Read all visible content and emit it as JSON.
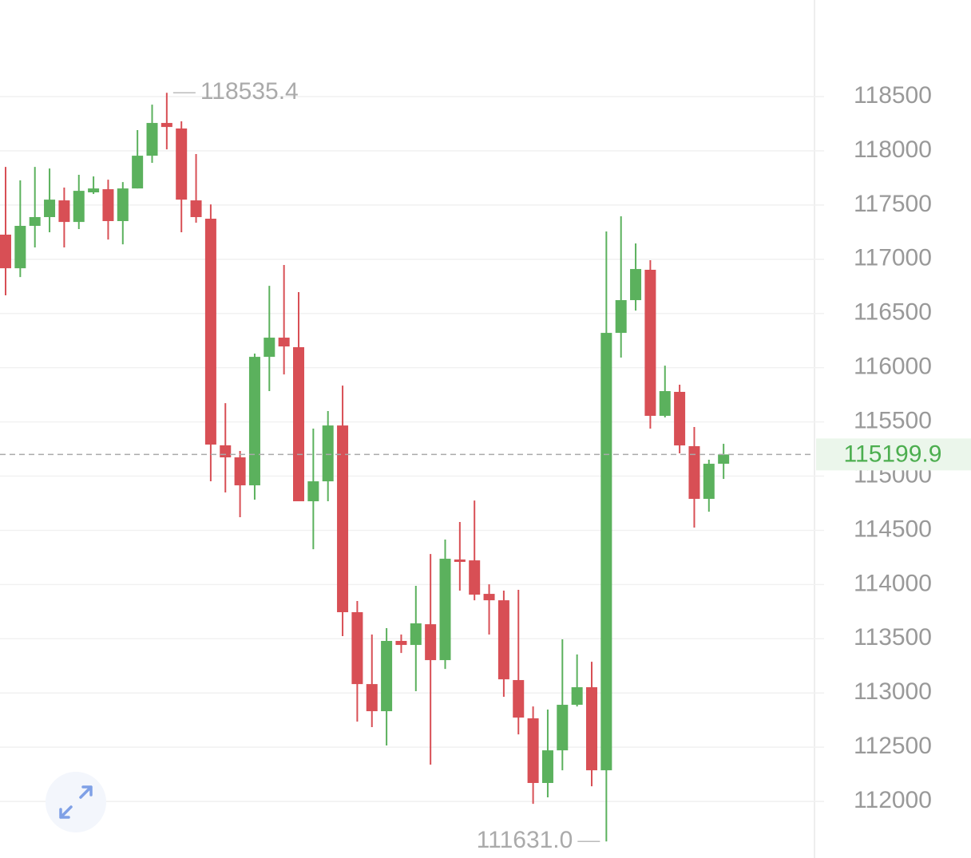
{
  "chart_data": {
    "type": "candlestick",
    "ylim": [
      111478,
      119391
    ],
    "yticks": [
      112000,
      112500,
      113000,
      113500,
      114000,
      114500,
      115000,
      115500,
      116000,
      116500,
      117000,
      117500,
      118000,
      118500
    ],
    "grid": true,
    "up_color": "#5bb15d",
    "down_color": "#d84f55",
    "open": [
      117227,
      116917,
      117308,
      117389,
      117543,
      117344,
      117617,
      117646,
      117352,
      117653,
      117955,
      118257,
      118206,
      117543,
      117374,
      115284,
      115173,
      114915,
      116100,
      116277,
      116189,
      114768,
      114952,
      115467,
      113745,
      113082,
      112832,
      113480,
      113443,
      113634,
      113303,
      114231,
      114223,
      113914,
      113855,
      113119,
      112766,
      112170,
      112471,
      112891,
      113053,
      112287,
      116321,
      116623,
      116903,
      115556,
      115777,
      115276,
      114790,
      115114
    ],
    "high": [
      117852,
      117727,
      117852,
      117837,
      117661,
      117779,
      117764,
      117734,
      117712,
      118191,
      118426,
      118535.4,
      118272,
      117970,
      117506,
      115673,
      115232,
      116130,
      116755,
      116947,
      116697,
      115438,
      115600,
      115835,
      113848,
      113539,
      113598,
      113539,
      113988,
      114282,
      114415,
      114577,
      114775,
      114002,
      113944,
      113951,
      112876,
      112847,
      113495,
      113355,
      113288,
      117256,
      117396,
      117146,
      116991,
      116019,
      115843,
      115453,
      115151,
      115298
    ],
    "low": [
      116667,
      116836,
      117109,
      117249,
      117109,
      117278,
      117602,
      117182,
      117138,
      117653,
      117889,
      118014,
      117249,
      117337,
      114952,
      114849,
      114621,
      114783,
      115784,
      115938,
      114768,
      114326,
      114768,
      113524,
      112736,
      112685,
      112516,
      113369,
      113016,
      112339,
      113222,
      113944,
      113855,
      113539,
      112965,
      112618,
      111978,
      112037,
      112287,
      112876,
      112140,
      111631.0,
      116093,
      116527,
      115438,
      115541,
      115210,
      114525,
      114672,
      114974
    ],
    "close": [
      116917,
      117308,
      117389,
      117550,
      117344,
      117631,
      117653,
      117352,
      117653,
      117955,
      118257,
      118220,
      117550,
      117389,
      115291,
      115173,
      114915,
      116100,
      116277,
      116196,
      114768,
      114952,
      115467,
      113745,
      113082,
      112832,
      113480,
      113443,
      113642,
      113303,
      114238,
      114216,
      113907,
      113855,
      113126,
      112773,
      112170,
      112471,
      112891,
      113053,
      112287,
      116321,
      116623,
      116910,
      115556,
      115784,
      115283,
      114790,
      115114,
      115199.9
    ],
    "annotations": [
      {
        "value": 118535.4,
        "label": "118535.4"
      },
      {
        "value": 111631.0,
        "label": "111631.0"
      }
    ],
    "last_price": {
      "value": 115199.9,
      "label": "115199.9"
    }
  }
}
